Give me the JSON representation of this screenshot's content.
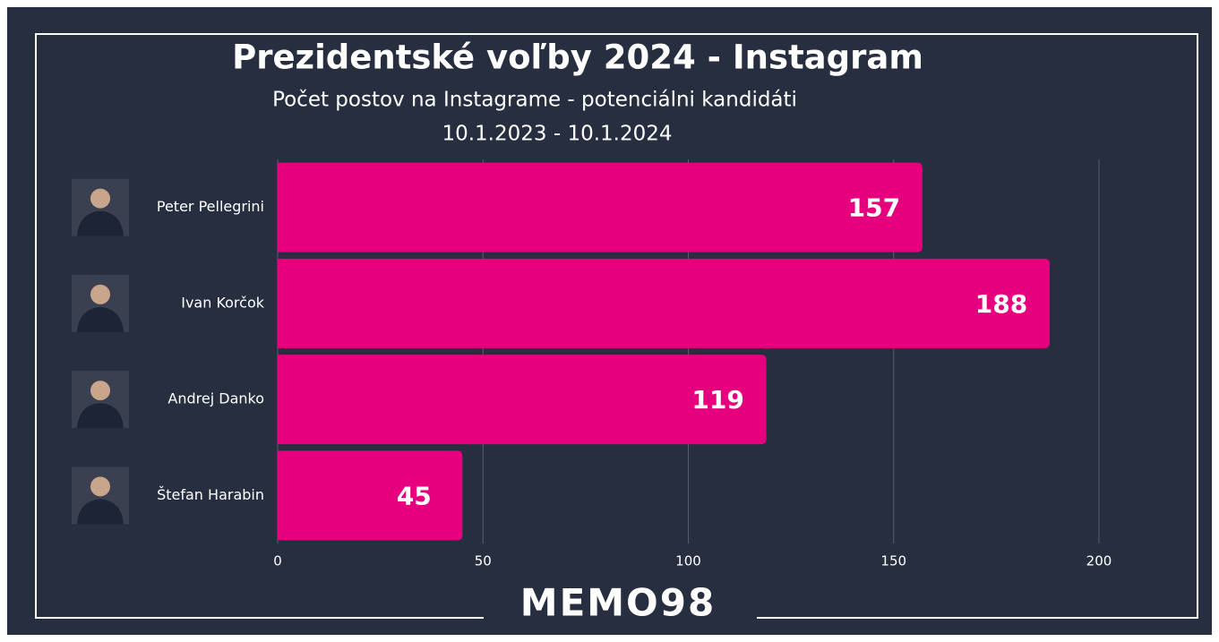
{
  "chart_data": {
    "type": "bar",
    "orientation": "horizontal",
    "title": "Prezidentské voľby 2024 - Instagram",
    "subtitle": "Počet postov na Instagrame - potenciálni kandidáti",
    "date_range": "10.1.2023 - 10.1.2024",
    "categories": [
      "Peter Pellegrini",
      "Ivan Korčok",
      "Andrej Danko",
      "Štefan Harabin"
    ],
    "values": [
      157,
      188,
      119,
      45
    ],
    "color": "#e6007e",
    "xlim": [
      0,
      200
    ],
    "xticks": [
      0,
      50,
      100,
      150,
      200
    ],
    "grid": true,
    "logo": "MEMO98"
  }
}
